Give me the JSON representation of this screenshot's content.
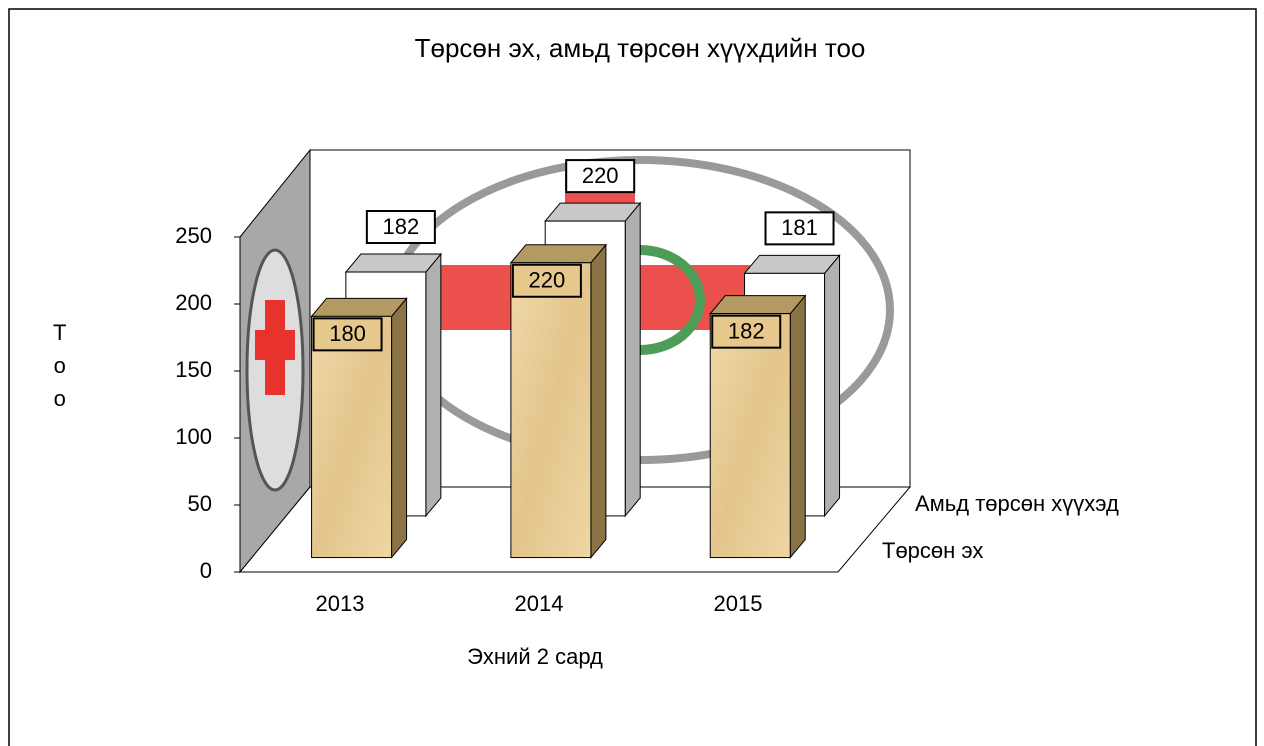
{
  "chart_data": {
    "type": "bar3d",
    "title": "Төрсөн эх, амьд төрсөн хүүхдийн тоо",
    "x_label": "Эхний 2 сард",
    "y_label": "Тоо",
    "categories": [
      "2013",
      "2014",
      "2015"
    ],
    "series": [
      {
        "name": "Төрсөн эх",
        "color": "#e6c88c",
        "values": [
          180,
          220,
          182
        ]
      },
      {
        "name": "Амьд төрсөн хүүхэд",
        "color": "#ffffff",
        "values": [
          182,
          220,
          181
        ]
      }
    ],
    "ylim": [
      0,
      250
    ],
    "yticks": [
      0,
      50,
      100,
      150,
      200,
      250
    ]
  }
}
